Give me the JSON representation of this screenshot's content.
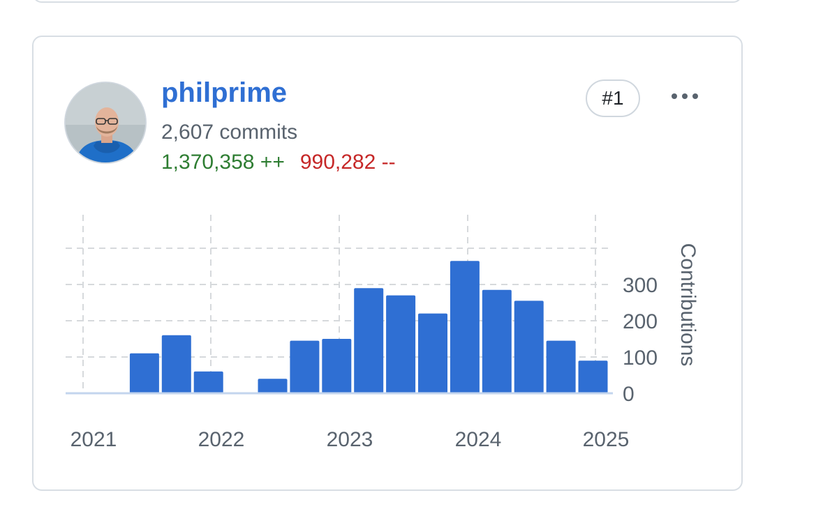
{
  "contributor": {
    "username": "philprime",
    "commits": "2,607 commits",
    "additions": "1,370,358 ++",
    "deletions": "990,282 --",
    "rank": "#1",
    "avatar": "user-avatar-photo"
  },
  "colors": {
    "link": "#2f6fd3",
    "bar": "#2f6fd3",
    "additions": "#2e7d32",
    "deletions": "#c62828"
  },
  "chart_data": {
    "type": "bar",
    "ylabel": "Contributions",
    "ylim": [
      0,
      400
    ],
    "y_ticks": [
      "0",
      "100",
      "200",
      "300"
    ],
    "x_ticks": [
      "2021",
      "2022",
      "2023",
      "2024",
      "2025"
    ],
    "grid": true,
    "categories": [
      "2021-Q1",
      "2021-Q2",
      "2021-Q3",
      "2021-Q4",
      "2022-Q1",
      "2022-Q2",
      "2022-Q3",
      "2022-Q4",
      "2023-Q1",
      "2023-Q2",
      "2023-Q3",
      "2023-Q4",
      "2024-Q1",
      "2024-Q2",
      "2024-Q3",
      "2024-Q4"
    ],
    "values": [
      0,
      110,
      160,
      60,
      0,
      40,
      145,
      150,
      290,
      270,
      220,
      365,
      285,
      255,
      145,
      90
    ]
  }
}
